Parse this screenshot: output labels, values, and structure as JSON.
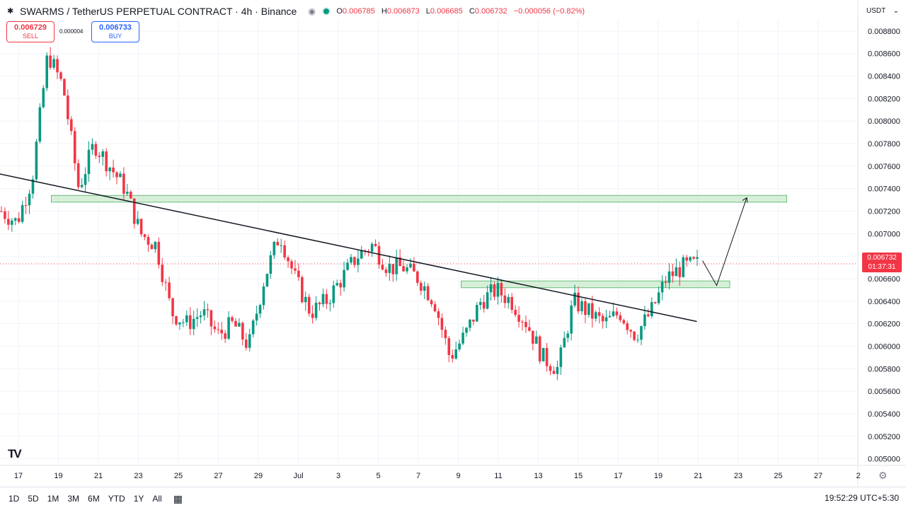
{
  "header": {
    "symbol_title": "SWARMS / TetherUS PERPETUAL CONTRACT · 4h · Binance",
    "ohlc": {
      "o_label": "O",
      "o_value": "0.006785",
      "h_label": "H",
      "h_value": "0.006873",
      "l_label": "L",
      "l_value": "0.006685",
      "c_label": "C",
      "c_value": "0.006732",
      "change": "−0.000056 (−0.82%)"
    },
    "status_color": "#089981"
  },
  "trade": {
    "sell_price": "0.006729",
    "sell_label": "SELL",
    "spread": "0.000004",
    "buy_price": "0.006733",
    "buy_label": "BUY"
  },
  "currency": {
    "label": "USDT",
    "chevron": "⌄"
  },
  "last_price": {
    "price": "0.006732",
    "countdown": "01:37:31"
  },
  "bottom_bar": {
    "timeframes": [
      "1D",
      "5D",
      "1M",
      "3M",
      "6M",
      "YTD",
      "1Y",
      "All"
    ],
    "clock": "19:52:29 UTC+5:30"
  },
  "colors": {
    "up": "#089981",
    "down": "#f23645",
    "zone_fill": "#d7efd9",
    "zone_border": "#6abf7b",
    "trendline": "#131722",
    "projection": "#131722"
  },
  "chart_data": {
    "type": "candlestick",
    "title": "",
    "xlabel": "",
    "ylabel": "",
    "ylim": [
      0.00496,
      0.0089
    ],
    "y_ticks": [
      "0.008800",
      "0.008600",
      "0.008400",
      "0.008200",
      "0.008000",
      "0.007800",
      "0.007600",
      "0.007400",
      "0.007200",
      "0.007000",
      "0.006800",
      "0.006600",
      "0.006400",
      "0.006200",
      "0.006000",
      "0.005800",
      "0.005600",
      "0.005400",
      "0.005200",
      "0.005000"
    ],
    "x_ticks": [
      "17",
      "19",
      "21",
      "23",
      "25",
      "27",
      "29",
      "Jul",
      "3",
      "5",
      "7",
      "9",
      "11",
      "13",
      "15",
      "17",
      "19",
      "21",
      "23",
      "25",
      "27",
      "2"
    ],
    "series_closes_approx": [
      0.0072,
      0.0071,
      0.0075,
      0.0086,
      0.0083,
      0.0074,
      0.0078,
      0.0076,
      0.0074,
      0.007,
      0.0069,
      0.0063,
      0.0062,
      0.0063,
      0.0061,
      0.0062,
      0.006,
      0.0066,
      0.007,
      0.0066,
      0.0063,
      0.0064,
      0.0066,
      0.0068,
      0.0069,
      0.0067,
      0.0067,
      0.0066,
      0.0064,
      0.0059,
      0.0061,
      0.0064,
      0.0065,
      0.0064,
      0.0062,
      0.0059,
      0.0058,
      0.0064,
      0.0063,
      0.0062,
      0.0063,
      0.0061,
      0.0063,
      0.0066,
      0.0067,
      0.00673
    ],
    "resistance_zone": [
      0.00728,
      0.00734
    ],
    "support_zone": [
      0.00652,
      0.00658
    ],
    "trendline": {
      "from": [
        "26",
        0.00756
      ],
      "to": [
        "21",
        0.00622
      ]
    },
    "projection": {
      "from": [
        "21",
        0.00676
      ],
      "mid": [
        "22",
        0.00654
      ],
      "to": [
        "23",
        0.00732
      ]
    }
  }
}
